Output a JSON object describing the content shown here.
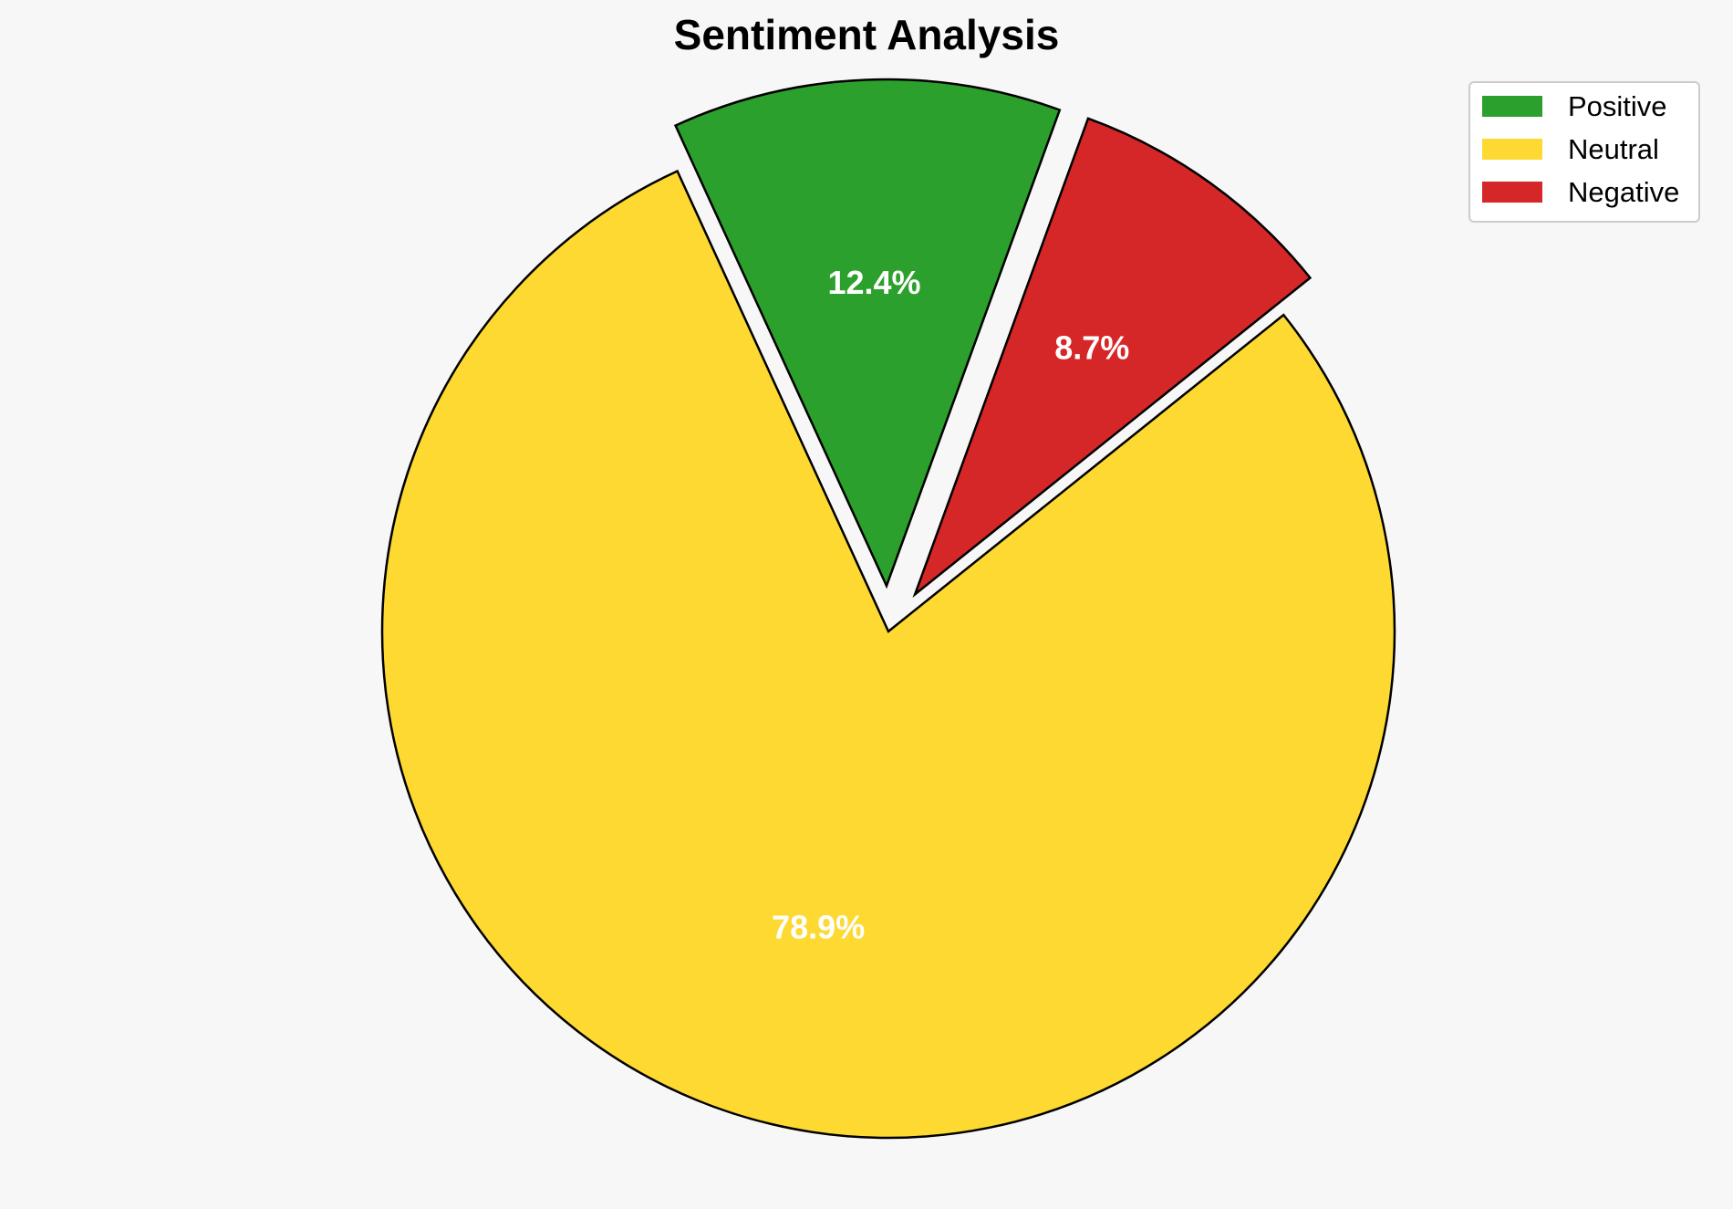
{
  "chart_data": {
    "type": "pie",
    "title": "Sentiment Analysis",
    "categories": [
      "Positive",
      "Neutral",
      "Negative"
    ],
    "values": [
      12.4,
      78.9,
      8.7
    ],
    "value_labels": [
      "12.4%",
      "78.9%",
      "8.7%"
    ],
    "colors": [
      "#2ca02c",
      "#fdd931",
      "#d62728"
    ],
    "exploded": [
      true,
      false,
      true
    ],
    "legend_position": "top-right",
    "legend": [
      {
        "label": "Positive",
        "color": "#2ca02c"
      },
      {
        "label": "Neutral",
        "color": "#fdd931"
      },
      {
        "label": "Negative",
        "color": "#d62728"
      }
    ]
  }
}
